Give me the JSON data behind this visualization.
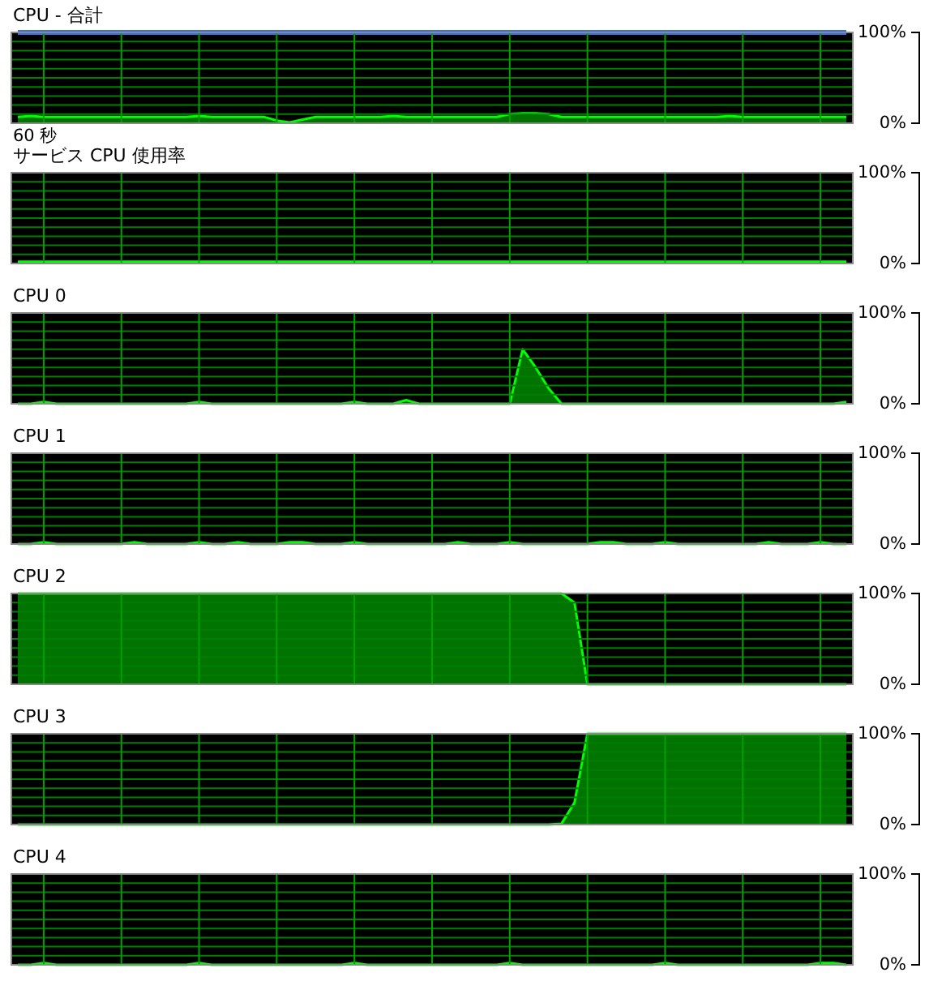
{
  "chart_data": [
    {
      "type": "area",
      "title": "CPU - 合計",
      "xlabel": "60 秒",
      "categories": [
        null,
        null,
        null,
        null,
        null,
        null,
        null,
        null,
        null,
        null,
        null,
        null,
        null,
        null,
        null,
        null,
        null,
        null,
        null,
        null,
        null,
        null,
        null,
        null,
        null,
        null,
        null,
        null,
        null,
        null,
        null,
        null,
        null,
        null,
        null,
        null,
        null,
        null,
        null,
        null,
        null,
        null,
        null,
        null,
        null,
        null,
        null,
        null,
        null,
        null,
        null,
        null,
        null,
        null,
        null,
        null,
        null,
        null,
        null,
        null,
        null,
        null,
        null,
        null,
        null
      ],
      "ylim": [
        0,
        100
      ],
      "yticks": [
        {
          "value": 0,
          "label": "0%"
        },
        {
          "value": 10,
          "label": null
        },
        {
          "value": 20,
          "label": null
        },
        {
          "value": 30,
          "label": null
        },
        {
          "value": 40,
          "label": null
        },
        {
          "value": 50,
          "label": null
        },
        {
          "value": 60,
          "label": null
        },
        {
          "value": 70,
          "label": null
        },
        {
          "value": 80,
          "label": null
        },
        {
          "value": 90,
          "label": null
        },
        {
          "value": 100,
          "label": "100%"
        }
      ],
      "grid": true,
      "tick_labels": "y",
      "series": [
        {
          "color": "#00c000",
          "values": [
            7,
            8,
            7,
            7,
            7,
            7,
            7,
            7,
            7,
            7,
            7,
            7,
            7,
            7,
            8,
            7,
            7,
            7,
            7,
            7,
            3,
            1,
            4,
            7,
            7,
            7,
            7,
            7,
            7,
            8,
            7,
            7,
            7,
            7,
            7,
            7,
            7,
            7,
            10,
            11,
            11,
            10,
            7,
            7,
            7,
            7,
            7,
            7,
            7,
            7,
            7,
            7,
            7,
            7,
            7,
            8,
            7,
            7,
            7,
            7,
            7,
            7,
            7,
            7,
            7
          ]
        },
        {
          "type": "line",
          "color": "#3a6ee8",
          "values": [
            100,
            100,
            100,
            100,
            100,
            100,
            100,
            100,
            100,
            100,
            100,
            100,
            100,
            100,
            100,
            100,
            100,
            100,
            100,
            100,
            100,
            100,
            100,
            100,
            100,
            100,
            100,
            100,
            100,
            100,
            100,
            100,
            100,
            100,
            100,
            100,
            100,
            100,
            100,
            100,
            100,
            100,
            100,
            100,
            100,
            100,
            100,
            100,
            100,
            100,
            100,
            100,
            100,
            100,
            100,
            100,
            100,
            100,
            100,
            100,
            100,
            100,
            100,
            100,
            100
          ]
        }
      ]
    },
    {
      "type": "area",
      "title": "サービス CPU 使用率",
      "categories": [
        null,
        null,
        null,
        null,
        null,
        null,
        null,
        null,
        null,
        null,
        null,
        null,
        null,
        null,
        null,
        null,
        null,
        null,
        null,
        null,
        null,
        null,
        null,
        null,
        null,
        null,
        null,
        null,
        null,
        null,
        null,
        null,
        null,
        null,
        null,
        null,
        null,
        null,
        null,
        null,
        null,
        null,
        null,
        null,
        null,
        null,
        null,
        null,
        null,
        null,
        null,
        null,
        null,
        null,
        null,
        null,
        null,
        null,
        null,
        null,
        null,
        null,
        null,
        null,
        null
      ],
      "ylim": [
        0,
        100
      ],
      "yticks": [
        {
          "value": 0,
          "label": "0%"
        },
        {
          "value": 10,
          "label": null
        },
        {
          "value": 20,
          "label": null
        },
        {
          "value": 30,
          "label": null
        },
        {
          "value": 40,
          "label": null
        },
        {
          "value": 50,
          "label": null
        },
        {
          "value": 60,
          "label": null
        },
        {
          "value": 70,
          "label": null
        },
        {
          "value": 80,
          "label": null
        },
        {
          "value": 90,
          "label": null
        },
        {
          "value": 100,
          "label": "100%"
        }
      ],
      "grid": true,
      "tick_labels": "y",
      "series": [
        {
          "color": "#00c000",
          "values": [
            2,
            2,
            2,
            2,
            2,
            2,
            2,
            2,
            2,
            2,
            2,
            2,
            2,
            2,
            2,
            2,
            2,
            2,
            2,
            2,
            2,
            2,
            2,
            2,
            2,
            2,
            2,
            2,
            2,
            2,
            2,
            2,
            2,
            2,
            2,
            2,
            2,
            2,
            2,
            2,
            2,
            2,
            2,
            2,
            2,
            2,
            2,
            2,
            2,
            2,
            2,
            2,
            2,
            2,
            2,
            2,
            2,
            2,
            2,
            2,
            2,
            2,
            2,
            2,
            2
          ]
        }
      ]
    },
    {
      "type": "area",
      "title": "CPU 0",
      "categories": [
        null,
        null,
        null,
        null,
        null,
        null,
        null,
        null,
        null,
        null,
        null,
        null,
        null,
        null,
        null,
        null,
        null,
        null,
        null,
        null,
        null,
        null,
        null,
        null,
        null,
        null,
        null,
        null,
        null,
        null,
        null,
        null,
        null,
        null,
        null,
        null,
        null,
        null,
        null,
        null,
        null,
        null,
        null,
        null,
        null,
        null,
        null,
        null,
        null,
        null,
        null,
        null,
        null,
        null,
        null,
        null,
        null,
        null,
        null,
        null,
        null,
        null,
        null,
        null,
        null
      ],
      "ylim": [
        0,
        100
      ],
      "yticks": [
        {
          "value": 0,
          "label": "0%"
        },
        {
          "value": 10,
          "label": null
        },
        {
          "value": 20,
          "label": null
        },
        {
          "value": 30,
          "label": null
        },
        {
          "value": 40,
          "label": null
        },
        {
          "value": 50,
          "label": null
        },
        {
          "value": 60,
          "label": null
        },
        {
          "value": 70,
          "label": null
        },
        {
          "value": 80,
          "label": null
        },
        {
          "value": 90,
          "label": null
        },
        {
          "value": 100,
          "label": "100%"
        }
      ],
      "grid": true,
      "tick_labels": "y",
      "series": [
        {
          "color": "#00c000",
          "values": [
            0,
            0,
            2,
            0,
            0,
            0,
            0,
            0,
            0,
            0,
            0,
            0,
            0,
            0,
            2,
            0,
            0,
            0,
            0,
            0,
            0,
            0,
            0,
            0,
            0,
            0,
            2,
            0,
            0,
            0,
            4,
            0,
            0,
            0,
            0,
            0,
            0,
            0,
            0,
            60,
            40,
            17,
            0,
            0,
            0,
            0,
            0,
            0,
            0,
            0,
            0,
            0,
            0,
            0,
            0,
            0,
            0,
            0,
            0,
            0,
            0,
            0,
            0,
            0,
            2
          ]
        }
      ]
    },
    {
      "type": "area",
      "title": "CPU 1",
      "categories": [
        null,
        null,
        null,
        null,
        null,
        null,
        null,
        null,
        null,
        null,
        null,
        null,
        null,
        null,
        null,
        null,
        null,
        null,
        null,
        null,
        null,
        null,
        null,
        null,
        null,
        null,
        null,
        null,
        null,
        null,
        null,
        null,
        null,
        null,
        null,
        null,
        null,
        null,
        null,
        null,
        null,
        null,
        null,
        null,
        null,
        null,
        null,
        null,
        null,
        null,
        null,
        null,
        null,
        null,
        null,
        null,
        null,
        null,
        null,
        null,
        null,
        null,
        null,
        null,
        null
      ],
      "ylim": [
        0,
        100
      ],
      "yticks": [
        {
          "value": 0,
          "label": "0%"
        },
        {
          "value": 10,
          "label": null
        },
        {
          "value": 20,
          "label": null
        },
        {
          "value": 30,
          "label": null
        },
        {
          "value": 40,
          "label": null
        },
        {
          "value": 50,
          "label": null
        },
        {
          "value": 60,
          "label": null
        },
        {
          "value": 70,
          "label": null
        },
        {
          "value": 80,
          "label": null
        },
        {
          "value": 90,
          "label": null
        },
        {
          "value": 100,
          "label": "100%"
        }
      ],
      "grid": true,
      "tick_labels": "y",
      "series": [
        {
          "color": "#00c000",
          "values": [
            0,
            0,
            2,
            0,
            0,
            0,
            0,
            0,
            0,
            2,
            0,
            0,
            0,
            0,
            2,
            0,
            0,
            2,
            0,
            0,
            0,
            2,
            2,
            0,
            0,
            0,
            2,
            0,
            0,
            0,
            0,
            0,
            0,
            0,
            2,
            0,
            0,
            0,
            2,
            0,
            0,
            0,
            0,
            0,
            0,
            2,
            2,
            0,
            0,
            0,
            2,
            0,
            0,
            0,
            0,
            0,
            0,
            0,
            2,
            0,
            0,
            0,
            2,
            0,
            0
          ]
        }
      ]
    },
    {
      "type": "area",
      "title": "CPU 2",
      "categories": [
        null,
        null,
        null,
        null,
        null,
        null,
        null,
        null,
        null,
        null,
        null,
        null,
        null,
        null,
        null,
        null,
        null,
        null,
        null,
        null,
        null,
        null,
        null,
        null,
        null,
        null,
        null,
        null,
        null,
        null,
        null,
        null,
        null,
        null,
        null,
        null,
        null,
        null,
        null,
        null,
        null,
        null,
        null,
        null,
        null,
        null,
        null,
        null,
        null,
        null,
        null,
        null,
        null,
        null,
        null,
        null,
        null,
        null,
        null,
        null,
        null,
        null,
        null,
        null,
        null
      ],
      "ylim": [
        0,
        100
      ],
      "yticks": [
        {
          "value": 0,
          "label": "0%"
        },
        {
          "value": 10,
          "label": null
        },
        {
          "value": 20,
          "label": null
        },
        {
          "value": 30,
          "label": null
        },
        {
          "value": 40,
          "label": null
        },
        {
          "value": 50,
          "label": null
        },
        {
          "value": 60,
          "label": null
        },
        {
          "value": 70,
          "label": null
        },
        {
          "value": 80,
          "label": null
        },
        {
          "value": 90,
          "label": null
        },
        {
          "value": 100,
          "label": "100%"
        }
      ],
      "grid": true,
      "tick_labels": "y",
      "series": [
        {
          "color": "#00c000",
          "values": [
            100,
            100,
            100,
            100,
            100,
            100,
            100,
            100,
            100,
            100,
            100,
            100,
            100,
            100,
            100,
            100,
            100,
            100,
            100,
            100,
            100,
            100,
            100,
            100,
            100,
            100,
            100,
            100,
            100,
            100,
            100,
            100,
            100,
            100,
            100,
            100,
            100,
            100,
            100,
            100,
            100,
            100,
            100,
            90,
            0,
            0,
            0,
            0,
            0,
            0,
            0,
            0,
            0,
            0,
            0,
            0,
            0,
            0,
            0,
            0,
            0,
            0,
            0,
            0,
            0
          ]
        }
      ]
    },
    {
      "type": "area",
      "title": "CPU 3",
      "categories": [
        null,
        null,
        null,
        null,
        null,
        null,
        null,
        null,
        null,
        null,
        null,
        null,
        null,
        null,
        null,
        null,
        null,
        null,
        null,
        null,
        null,
        null,
        null,
        null,
        null,
        null,
        null,
        null,
        null,
        null,
        null,
        null,
        null,
        null,
        null,
        null,
        null,
        null,
        null,
        null,
        null,
        null,
        null,
        null,
        null,
        null,
        null,
        null,
        null,
        null,
        null,
        null,
        null,
        null,
        null,
        null,
        null,
        null,
        null,
        null,
        null,
        null,
        null,
        null,
        null
      ],
      "ylim": [
        0,
        100
      ],
      "yticks": [
        {
          "value": 0,
          "label": "0%"
        },
        {
          "value": 10,
          "label": null
        },
        {
          "value": 20,
          "label": null
        },
        {
          "value": 30,
          "label": null
        },
        {
          "value": 40,
          "label": null
        },
        {
          "value": 50,
          "label": null
        },
        {
          "value": 60,
          "label": null
        },
        {
          "value": 70,
          "label": null
        },
        {
          "value": 80,
          "label": null
        },
        {
          "value": 90,
          "label": null
        },
        {
          "value": 100,
          "label": "100%"
        }
      ],
      "grid": true,
      "tick_labels": "y",
      "series": [
        {
          "color": "#00c000",
          "values": [
            0,
            0,
            0,
            0,
            0,
            0,
            0,
            0,
            0,
            0,
            0,
            0,
            0,
            0,
            0,
            0,
            0,
            0,
            0,
            0,
            0,
            0,
            0,
            0,
            0,
            0,
            0,
            0,
            0,
            0,
            0,
            0,
            0,
            0,
            0,
            0,
            0,
            0,
            0,
            0,
            0,
            0,
            1,
            24,
            100,
            100,
            100,
            100,
            100,
            100,
            100,
            100,
            100,
            100,
            100,
            100,
            100,
            100,
            100,
            100,
            100,
            100,
            100,
            100,
            100
          ]
        }
      ]
    },
    {
      "type": "area",
      "title": "CPU 4",
      "categories": [
        null,
        null,
        null,
        null,
        null,
        null,
        null,
        null,
        null,
        null,
        null,
        null,
        null,
        null,
        null,
        null,
        null,
        null,
        null,
        null,
        null,
        null,
        null,
        null,
        null,
        null,
        null,
        null,
        null,
        null,
        null,
        null,
        null,
        null,
        null,
        null,
        null,
        null,
        null,
        null,
        null,
        null,
        null,
        null,
        null,
        null,
        null,
        null,
        null,
        null,
        null,
        null,
        null,
        null,
        null,
        null,
        null,
        null,
        null,
        null,
        null,
        null,
        null,
        null,
        null
      ],
      "ylim": [
        0,
        100
      ],
      "yticks": [
        {
          "value": 0,
          "label": "0%"
        },
        {
          "value": 10,
          "label": null
        },
        {
          "value": 20,
          "label": null
        },
        {
          "value": 30,
          "label": null
        },
        {
          "value": 40,
          "label": null
        },
        {
          "value": 50,
          "label": null
        },
        {
          "value": 60,
          "label": null
        },
        {
          "value": 70,
          "label": null
        },
        {
          "value": 80,
          "label": null
        },
        {
          "value": 90,
          "label": null
        },
        {
          "value": 100,
          "label": "100%"
        }
      ],
      "grid": true,
      "tick_labels": "y",
      "series": [
        {
          "color": "#00c000",
          "values": [
            0,
            0,
            2,
            0,
            0,
            0,
            0,
            0,
            0,
            0,
            0,
            0,
            0,
            0,
            2,
            0,
            0,
            0,
            0,
            0,
            0,
            0,
            0,
            0,
            0,
            0,
            2,
            0,
            0,
            0,
            0,
            0,
            0,
            0,
            0,
            0,
            0,
            0,
            2,
            0,
            0,
            0,
            0,
            0,
            0,
            0,
            0,
            0,
            0,
            0,
            2,
            0,
            0,
            0,
            0,
            0,
            0,
            0,
            0,
            0,
            0,
            0,
            2,
            2,
            0
          ]
        }
      ]
    }
  ]
}
